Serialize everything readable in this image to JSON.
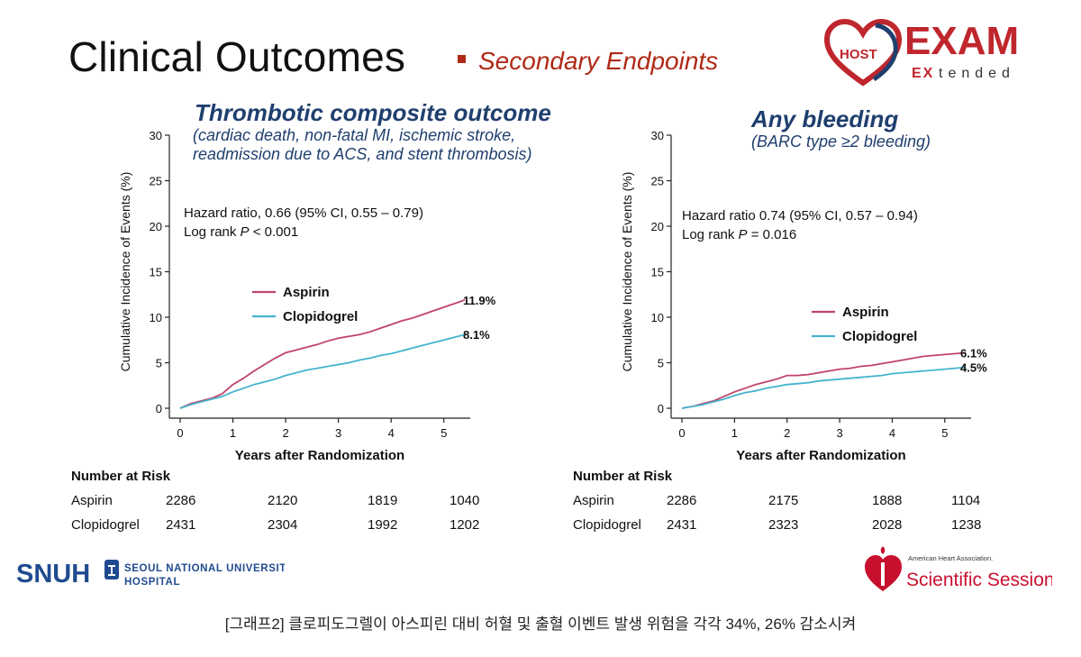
{
  "header": {
    "title": "Clinical Outcomes",
    "subtitle": "Secondary Endpoints",
    "logo_host": "HOST",
    "logo_exam": "EXAM",
    "logo_ex": "EX",
    "logo_tended": "tended"
  },
  "colors": {
    "aspirin": "#c0446a",
    "clopidogrel": "#45b3cf",
    "title_blue": "#1f3f6e",
    "accent_red": "#b02a16"
  },
  "charts": [
    {
      "title": "Thrombotic composite outcome",
      "subtitle_lines": [
        "(cardiac death, non-fatal MI, ischemic stroke,",
        "readmission due to ACS, and stent thrombosis)"
      ],
      "stats_line1": "Hazard ratio, 0.66 (95% CI, 0.55 – 0.79)",
      "stats_line2_prefix": "Log rank ",
      "stats_line2_p": "P",
      "stats_line2_suffix": " < 0.001",
      "legend": [
        "Aspirin",
        "Clopidogrel"
      ],
      "end_labels": [
        "11.9%",
        "8.1%"
      ],
      "risk": {
        "header": "Number at Risk",
        "rows": [
          {
            "label": "Aspirin",
            "values": [
              "2286",
              "2120",
              "1819",
              "1040"
            ]
          },
          {
            "label": "Clopidogrel",
            "values": [
              "2431",
              "2304",
              "1992",
              "1202"
            ]
          }
        ]
      }
    },
    {
      "title": "Any bleeding",
      "subtitle_lines": [
        "(BARC type ≥2 bleeding)"
      ],
      "stats_line1": "Hazard ratio 0.74 (95% CI, 0.57 – 0.94)",
      "stats_line2_prefix": "Log rank ",
      "stats_line2_p": "P",
      "stats_line2_suffix": " = 0.016",
      "legend": [
        "Aspirin",
        "Clopidogrel"
      ],
      "end_labels": [
        "6.1%",
        "4.5%"
      ],
      "risk": {
        "header": "Number at Risk",
        "rows": [
          {
            "label": "Aspirin",
            "values": [
              "2286",
              "2175",
              "1888",
              "1104"
            ]
          },
          {
            "label": "Clopidogrel",
            "values": [
              "2431",
              "2323",
              "2028",
              "1238"
            ]
          }
        ]
      }
    }
  ],
  "chart_data": [
    {
      "type": "line",
      "title": "Thrombotic composite outcome",
      "xlabel": "Years after Randomization",
      "ylabel": "Cumulative Incidence of Events (%)",
      "xlim": [
        0,
        5.5
      ],
      "ylim": [
        0,
        30
      ],
      "xticks": [
        0,
        1,
        2,
        3,
        4,
        5
      ],
      "yticks": [
        0,
        5,
        10,
        15,
        20,
        25,
        30
      ],
      "grid": false,
      "legend_position": "center-left",
      "series": [
        {
          "name": "Aspirin",
          "x": [
            0,
            0.2,
            0.4,
            0.6,
            0.8,
            1.0,
            1.2,
            1.4,
            1.6,
            1.8,
            2.0,
            2.2,
            2.4,
            2.6,
            2.8,
            3.0,
            3.2,
            3.4,
            3.6,
            3.8,
            4.0,
            4.2,
            4.4,
            4.6,
            4.8,
            5.0,
            5.2,
            5.4
          ],
          "y": [
            0,
            0.5,
            0.8,
            1.1,
            1.6,
            2.6,
            3.3,
            4.1,
            4.8,
            5.5,
            6.1,
            6.4,
            6.7,
            7.0,
            7.4,
            7.7,
            7.9,
            8.1,
            8.4,
            8.8,
            9.2,
            9.6,
            9.9,
            10.3,
            10.7,
            11.1,
            11.5,
            11.9
          ]
        },
        {
          "name": "Clopidogrel",
          "x": [
            0,
            0.2,
            0.4,
            0.6,
            0.8,
            1.0,
            1.2,
            1.4,
            1.6,
            1.8,
            2.0,
            2.2,
            2.4,
            2.6,
            2.8,
            3.0,
            3.2,
            3.4,
            3.6,
            3.8,
            4.0,
            4.2,
            4.4,
            4.6,
            4.8,
            5.0,
            5.2,
            5.4
          ],
          "y": [
            0,
            0.4,
            0.7,
            1.0,
            1.3,
            1.8,
            2.2,
            2.6,
            2.9,
            3.2,
            3.6,
            3.9,
            4.2,
            4.4,
            4.6,
            4.8,
            5.0,
            5.3,
            5.5,
            5.8,
            6.0,
            6.3,
            6.6,
            6.9,
            7.2,
            7.5,
            7.8,
            8.1
          ]
        }
      ]
    },
    {
      "type": "line",
      "title": "Any bleeding",
      "xlabel": "Years after Randomization",
      "ylabel": "Cumulative Incidence of Events (%)",
      "xlim": [
        0,
        5.5
      ],
      "ylim": [
        0,
        30
      ],
      "xticks": [
        0,
        1,
        2,
        3,
        4,
        5
      ],
      "yticks": [
        0,
        5,
        10,
        15,
        20,
        25,
        30
      ],
      "grid": false,
      "legend_position": "center-right",
      "series": [
        {
          "name": "Aspirin",
          "x": [
            0,
            0.2,
            0.4,
            0.6,
            0.8,
            1.0,
            1.2,
            1.4,
            1.6,
            1.8,
            2.0,
            2.2,
            2.4,
            2.6,
            2.8,
            3.0,
            3.2,
            3.4,
            3.6,
            3.8,
            4.0,
            4.2,
            4.4,
            4.6,
            4.8,
            5.0,
            5.2,
            5.4
          ],
          "y": [
            0,
            0.2,
            0.5,
            0.8,
            1.3,
            1.8,
            2.2,
            2.6,
            2.9,
            3.2,
            3.6,
            3.6,
            3.7,
            3.9,
            4.1,
            4.3,
            4.4,
            4.6,
            4.7,
            4.9,
            5.1,
            5.3,
            5.5,
            5.7,
            5.8,
            5.9,
            6.0,
            6.1
          ]
        },
        {
          "name": "Clopidogrel",
          "x": [
            0,
            0.2,
            0.4,
            0.6,
            0.8,
            1.0,
            1.2,
            1.4,
            1.6,
            1.8,
            2.0,
            2.2,
            2.4,
            2.6,
            2.8,
            3.0,
            3.2,
            3.4,
            3.6,
            3.8,
            4.0,
            4.2,
            4.4,
            4.6,
            4.8,
            5.0,
            5.2,
            5.4
          ],
          "y": [
            0,
            0.2,
            0.4,
            0.7,
            1.0,
            1.4,
            1.7,
            1.9,
            2.2,
            2.4,
            2.6,
            2.7,
            2.8,
            3.0,
            3.1,
            3.2,
            3.3,
            3.4,
            3.5,
            3.6,
            3.8,
            3.9,
            4.0,
            4.1,
            4.2,
            4.3,
            4.4,
            4.5
          ]
        }
      ]
    }
  ],
  "footer": {
    "snu_mark": "SNUH",
    "snu_line1": "SEOUL NATIONAL UNIVERSITY",
    "snu_line2": "HOSPITAL",
    "aha_small": "American Heart Association.",
    "aha_large": "Scientific Sessions",
    "caption": "[그래프2] 클로피도그렐이 아스피린 대비 허혈 및 출혈 이벤트 발생 위험을 각각 34%, 26% 감소시켜"
  }
}
